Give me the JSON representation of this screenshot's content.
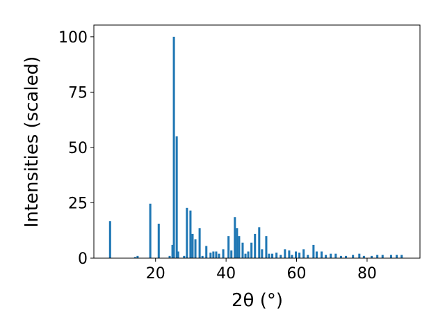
{
  "chart_data": {
    "type": "bar",
    "xlabel": "2θ (°)",
    "ylabel": "Intensities (scaled)",
    "color": "#1f77b4",
    "x": [
      7.1,
      14.2,
      14.9,
      18.5,
      20.9,
      24.0,
      24.8,
      25.2,
      26.0,
      26.4,
      28.1,
      28.9,
      29.9,
      30.5,
      31.3,
      32.5,
      33.3,
      34.4,
      35.6,
      36.4,
      37.2,
      38.0,
      39.2,
      40.7,
      41.5,
      42.5,
      43.1,
      43.7,
      44.7,
      45.5,
      46.3,
      47.2,
      48.2,
      49.4,
      50.2,
      51.4,
      52.2,
      53.1,
      54.3,
      55.5,
      56.7,
      57.9,
      58.7,
      59.8,
      60.8,
      62.0,
      63.2,
      64.8,
      65.7,
      67.1,
      68.3,
      69.7,
      71.1,
      72.6,
      74.0,
      76.0,
      77.8,
      79.1,
      81.3,
      82.9,
      84.4,
      86.8,
      88.4,
      89.8
    ],
    "values": [
      16.7,
      0.5,
      1,
      24.6,
      15.5,
      1,
      6,
      100,
      55,
      3,
      1,
      22.7,
      21.5,
      11,
      8.5,
      13.5,
      1,
      5.5,
      2.5,
      3,
      3,
      2,
      4,
      10,
      3.5,
      18.5,
      13.5,
      10,
      7,
      2,
      3,
      7,
      11,
      14,
      4,
      10,
      2,
      2,
      2.5,
      1.5,
      4,
      3.5,
      1.5,
      3,
      2.5,
      4,
      1.5,
      6,
      3,
      3,
      1.5,
      2,
      2,
      1,
      1,
      1.5,
      2,
      1,
      1,
      1.5,
      1.5,
      1.5,
      1.5,
      1.5
    ],
    "xlim": [
      2.5,
      95
    ],
    "ylim": [
      0,
      105.3
    ],
    "xticks": [
      20,
      40,
      60,
      80
    ],
    "yticks": [
      0,
      25,
      50,
      75,
      100
    ]
  }
}
